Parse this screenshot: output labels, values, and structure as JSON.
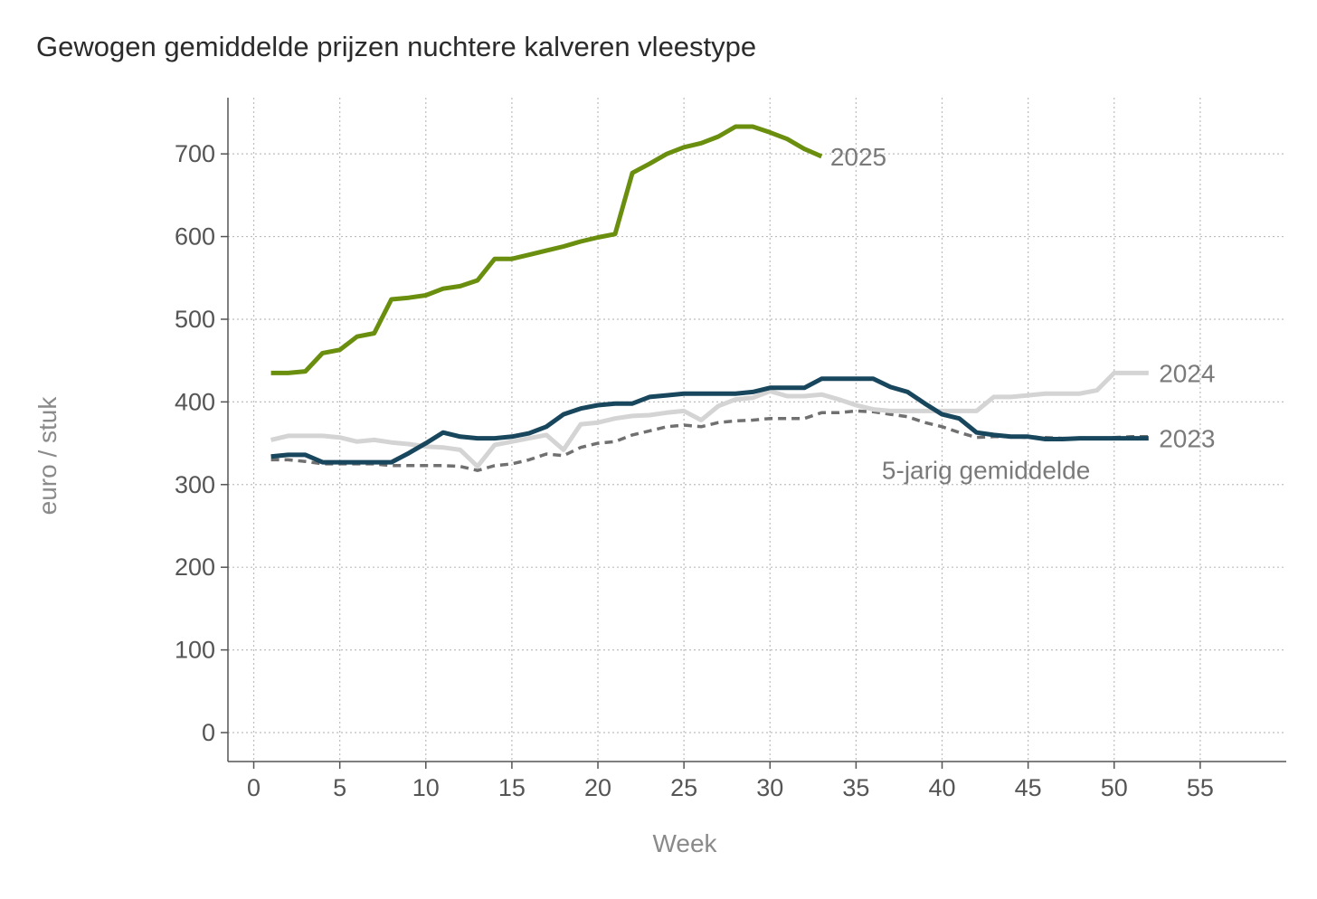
{
  "chart_data": {
    "type": "line",
    "title": "Gewogen gemiddelde prijzen nuchtere kalveren vleestype",
    "xlabel": "Week",
    "ylabel": "euro / stuk",
    "xlim": [
      -1.5,
      60
    ],
    "ylim": [
      -35,
      768
    ],
    "xticks": [
      0,
      5,
      10,
      15,
      20,
      25,
      30,
      35,
      40,
      45,
      50,
      55
    ],
    "yticks": [
      0,
      100,
      200,
      300,
      400,
      500,
      600,
      700
    ],
    "grid": true,
    "series": [
      {
        "name": "5-jarig gemiddelde",
        "color": "#707070",
        "dash": true,
        "x": [
          1,
          2,
          3,
          4,
          5,
          6,
          7,
          8,
          9,
          10,
          11,
          12,
          13,
          14,
          15,
          16,
          17,
          18,
          19,
          20,
          21,
          22,
          23,
          24,
          25,
          26,
          27,
          28,
          29,
          30,
          31,
          32,
          33,
          34,
          35,
          36,
          37,
          38,
          39,
          40,
          41,
          42,
          43,
          44,
          45,
          46,
          47,
          48,
          49,
          50,
          51,
          52
        ],
        "values": [
          330,
          330,
          328,
          325,
          325,
          325,
          325,
          323,
          323,
          323,
          323,
          322,
          317,
          323,
          325,
          330,
          337,
          335,
          345,
          350,
          352,
          360,
          365,
          370,
          372,
          370,
          375,
          377,
          378,
          380,
          380,
          380,
          387,
          387,
          389,
          388,
          385,
          382,
          375,
          370,
          363,
          357,
          358,
          358,
          357,
          357,
          356,
          356,
          356,
          357,
          358,
          358
        ]
      },
      {
        "name": "2024",
        "color": "#d4d4d4",
        "dash": false,
        "x": [
          1,
          2,
          3,
          4,
          5,
          6,
          7,
          8,
          9,
          10,
          11,
          12,
          13,
          14,
          15,
          16,
          17,
          18,
          19,
          20,
          21,
          22,
          23,
          24,
          25,
          26,
          27,
          28,
          29,
          30,
          31,
          32,
          33,
          34,
          35,
          36,
          37,
          38,
          39,
          40,
          41,
          42,
          43,
          44,
          45,
          46,
          47,
          48,
          49,
          50,
          51,
          52
        ],
        "values": [
          354,
          359,
          359,
          359,
          357,
          352,
          354,
          351,
          349,
          346,
          345,
          342,
          322,
          348,
          352,
          356,
          360,
          342,
          373,
          375,
          380,
          383,
          384,
          387,
          389,
          378,
          395,
          403,
          405,
          413,
          407,
          407,
          409,
          403,
          396,
          391,
          389,
          389,
          389,
          389,
          389,
          389,
          406,
          406,
          408,
          410,
          410,
          410,
          414,
          435,
          435,
          435
        ]
      },
      {
        "name": "2023",
        "color": "#17465d",
        "dash": false,
        "x": [
          1,
          2,
          3,
          4,
          5,
          6,
          7,
          8,
          9,
          10,
          11,
          12,
          13,
          14,
          15,
          16,
          17,
          18,
          19,
          20,
          21,
          22,
          23,
          24,
          25,
          26,
          27,
          28,
          29,
          30,
          31,
          32,
          33,
          34,
          35,
          36,
          37,
          38,
          39,
          40,
          41,
          42,
          43,
          44,
          45,
          46,
          47,
          48,
          49,
          50,
          51,
          52
        ],
        "values": [
          334,
          336,
          336,
          327,
          327,
          327,
          327,
          327,
          338,
          350,
          363,
          358,
          356,
          356,
          358,
          362,
          370,
          385,
          392,
          396,
          398,
          398,
          406,
          408,
          410,
          410,
          410,
          410,
          412,
          417,
          417,
          417,
          428,
          428,
          428,
          428,
          418,
          412,
          398,
          385,
          380,
          363,
          360,
          358,
          358,
          355,
          355,
          356,
          356,
          356,
          356,
          356
        ]
      },
      {
        "name": "2025",
        "color": "#6a8e0e",
        "dash": false,
        "x": [
          1,
          2,
          3,
          4,
          5,
          6,
          7,
          8,
          9,
          10,
          11,
          12,
          13,
          14,
          15,
          16,
          17,
          18,
          19,
          20,
          21,
          22,
          23,
          24,
          25,
          26,
          27,
          28,
          29,
          30,
          31,
          32,
          33
        ],
        "values": [
          435,
          435,
          437,
          459,
          463,
          479,
          483,
          524,
          526,
          529,
          537,
          540,
          547,
          573,
          573,
          578,
          583,
          588,
          594,
          599,
          603,
          677,
          688,
          700,
          708,
          713,
          721,
          733,
          733,
          726,
          718,
          706,
          697
        ]
      }
    ],
    "annotations": [
      {
        "text": "2025",
        "x": 33.5,
        "y": 697,
        "color": "#7a7a7a"
      },
      {
        "text": "2024",
        "x": 52.6,
        "y": 435,
        "color": "#7a7a7a"
      },
      {
        "text": "2023",
        "x": 52.6,
        "y": 356,
        "color": "#7a7a7a"
      },
      {
        "text": "5-jarig gemiddelde",
        "x": 36.5,
        "y": 318,
        "color": "#7a7a7a"
      }
    ]
  }
}
